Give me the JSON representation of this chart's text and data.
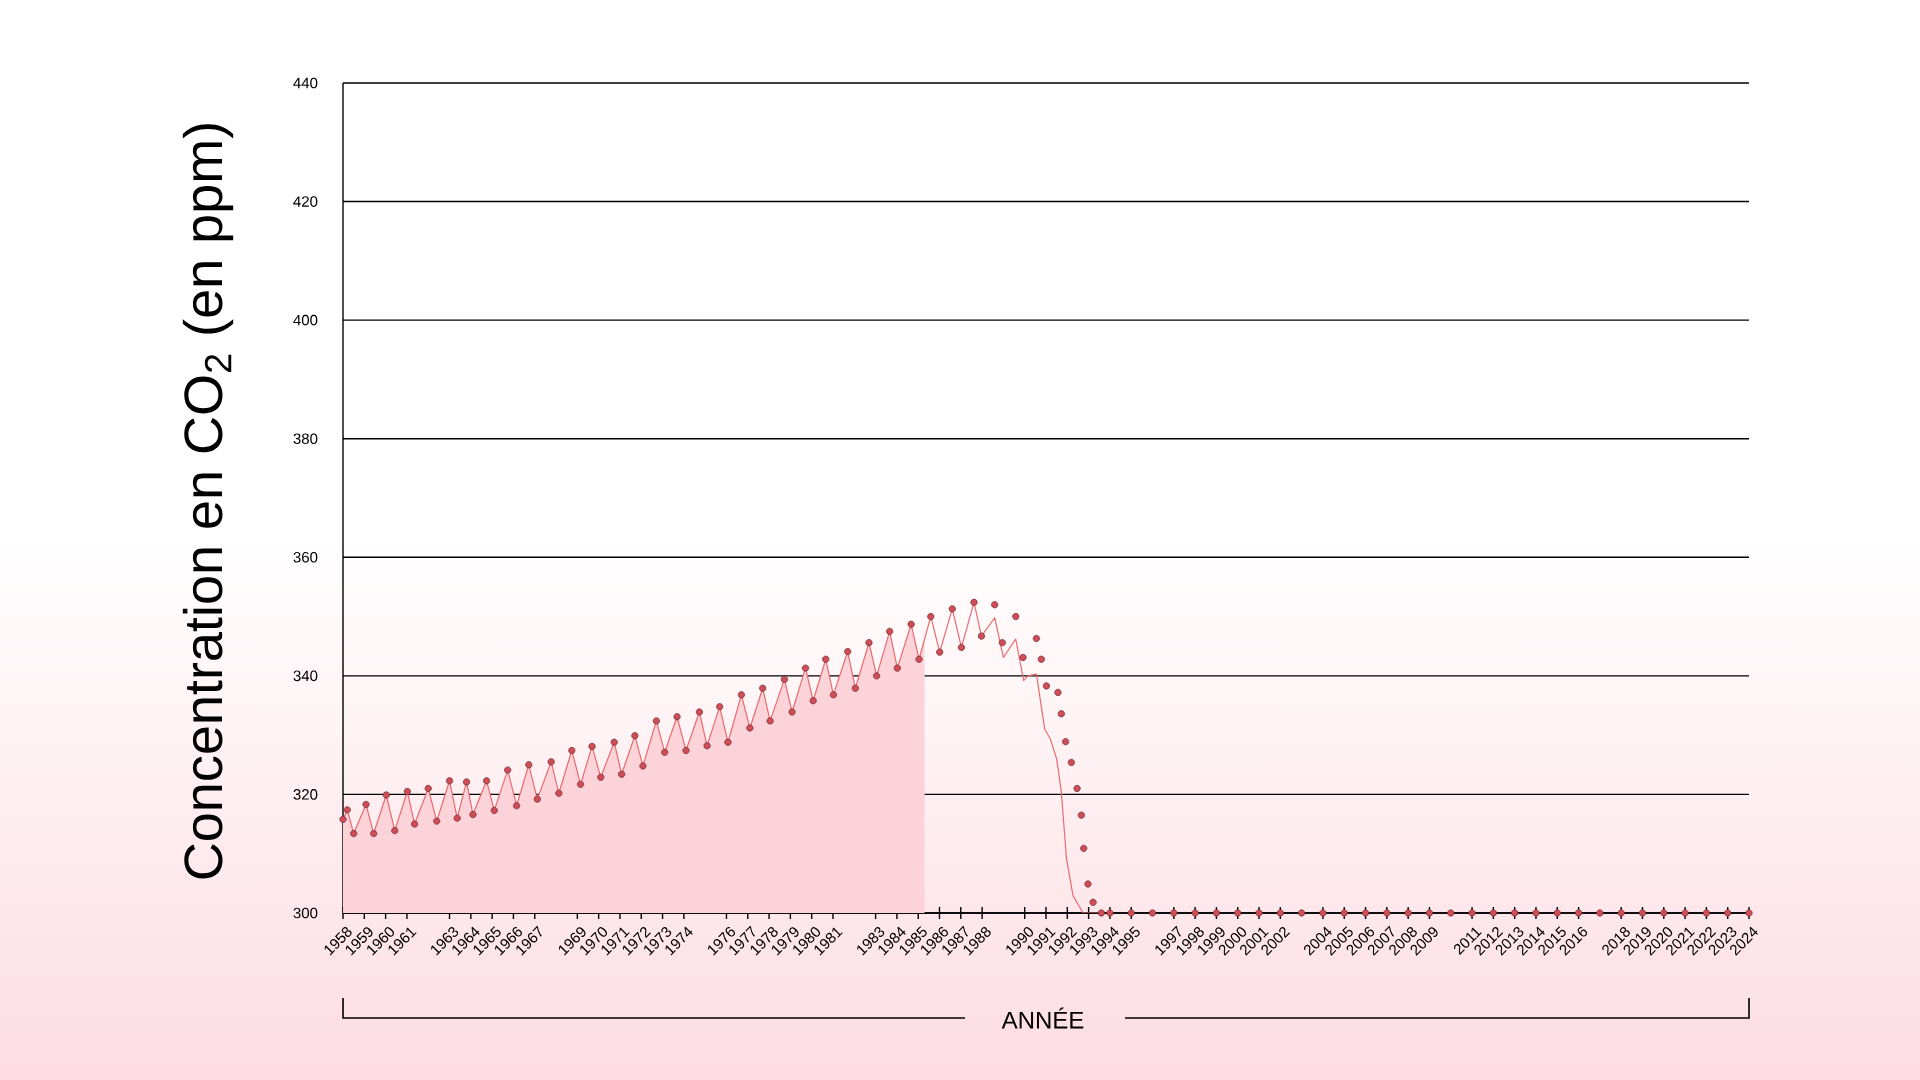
{
  "chart_data": {
    "type": "line",
    "ylabel": "Concentration en CO$_{2}$ (en ppm)",
    "xlabel": "ANNÉE",
    "xlim": [
      1958,
      2024
    ],
    "ylim": [
      300,
      440
    ],
    "yticks": [
      300,
      320,
      340,
      360,
      380,
      400,
      420,
      440
    ],
    "grid": "y",
    "xticks": [
      1958,
      1959,
      1960,
      1961,
      1963,
      1964,
      1965,
      1966,
      1967,
      1969,
      1970,
      1971,
      1972,
      1973,
      1974,
      1976,
      1977,
      1978,
      1979,
      1980,
      1981,
      1983,
      1984,
      1985,
      1986,
      1987,
      1988,
      1990,
      1991,
      1992,
      1993,
      1994,
      1995,
      1997,
      1998,
      1999,
      2000,
      2001,
      2002,
      2004,
      2005,
      2006,
      2007,
      2008,
      2009,
      2011,
      2012,
      2013,
      2014,
      2015,
      2016,
      2018,
      2019,
      2020,
      2021,
      2022,
      2023,
      2024
    ],
    "series": [
      {
        "type": "area",
        "color": "#fdd3da",
        "x": [
          1958.0,
          1958.2,
          1958.5,
          1959.08,
          1959.44,
          1960.03,
          1960.43,
          1961.02,
          1961.36,
          1962.0,
          1962.4,
          1963.0,
          1963.36,
          1963.8,
          1964.1,
          1964.74,
          1965.1,
          1965.73,
          1966.15,
          1966.72,
          1967.12,
          1967.77,
          1968.13,
          1968.74,
          1969.15,
          1969.69,
          1970.1,
          1970.73,
          1971.08,
          1971.7,
          1972.08,
          1972.71,
          1973.1,
          1973.68,
          1974.1,
          1974.73,
          1975.09,
          1975.68,
          1976.07,
          1976.7,
          1977.1,
          1977.7,
          1978.05,
          1978.72,
          1979.08,
          1979.71,
          1980.07,
          1980.66,
          1981.02,
          1981.69,
          1982.05,
          1982.69,
          1983.05,
          1983.66,
          1984.02,
          1984.67,
          1985.04,
          1985.3
        ],
        "values": [
          315.8,
          317.4,
          313.4,
          318.3,
          313.4,
          319.9,
          313.9,
          320.5,
          315.0,
          321.0,
          315.5,
          322.3,
          316.0,
          322.1,
          316.6,
          322.3,
          317.3,
          324.1,
          318.1,
          325.0,
          319.2,
          325.5,
          320.2,
          327.4,
          321.7,
          328.1,
          322.9,
          328.8,
          323.4,
          329.9,
          324.8,
          332.4,
          327.1,
          333.1,
          327.4,
          333.9,
          328.2,
          334.8,
          328.8,
          336.8,
          331.2,
          337.9,
          332.4,
          339.4,
          333.9,
          341.3,
          335.8,
          342.8,
          336.8,
          344.1,
          337.9,
          345.6,
          340.0,
          347.5,
          341.3,
          348.7,
          342.8,
          346.7
        ]
      },
      {
        "type": "line",
        "color": "#ea6a6e",
        "line_style": "solid",
        "x": [
          1958.0,
          1958.2,
          1958.5,
          1959.08,
          1959.44,
          1960.03,
          1960.43,
          1961.02,
          1961.36,
          1962.0,
          1962.4,
          1963.0,
          1963.36,
          1963.8,
          1964.1,
          1964.74,
          1965.1,
          1965.73,
          1966.15,
          1966.72,
          1967.12,
          1967.77,
          1968.13,
          1968.74,
          1969.15,
          1969.69,
          1970.1,
          1970.73,
          1971.08,
          1971.7,
          1972.08,
          1972.71,
          1973.1,
          1973.68,
          1974.1,
          1974.73,
          1975.09,
          1975.68,
          1976.07,
          1976.7,
          1977.1,
          1977.7,
          1978.05,
          1978.72,
          1979.08,
          1979.71,
          1980.07,
          1980.66,
          1981.02,
          1981.69,
          1982.05,
          1982.69,
          1983.05,
          1983.66,
          1984.02,
          1984.67,
          1985.04,
          1985.59,
          1986.01,
          1986.6,
          1987.03,
          1987.62,
          1987.97,
          1988.59,
          1989.0,
          1989.58,
          1989.95,
          1990.15,
          1990.55,
          1990.94,
          1991.2,
          1991.5,
          1991.72,
          1991.96,
          1992.27,
          1992.74,
          1993.6
        ],
        "values": [
          315.8,
          317.4,
          313.4,
          318.3,
          313.4,
          319.9,
          313.9,
          320.5,
          315.0,
          321.0,
          315.5,
          322.3,
          316.0,
          322.1,
          316.6,
          322.3,
          317.3,
          324.1,
          318.1,
          325.0,
          319.2,
          325.5,
          320.2,
          327.4,
          321.7,
          328.1,
          322.9,
          328.8,
          323.4,
          329.9,
          324.8,
          332.4,
          327.1,
          333.1,
          327.4,
          333.9,
          328.2,
          334.8,
          328.8,
          336.8,
          331.2,
          337.9,
          332.4,
          339.4,
          333.9,
          341.3,
          335.8,
          342.8,
          336.8,
          344.1,
          337.9,
          345.6,
          340.0,
          347.5,
          341.3,
          348.7,
          342.8,
          350.0,
          344.0,
          351.3,
          344.8,
          352.4,
          346.7,
          349.8,
          343.1,
          346.2,
          339.2,
          340.0,
          340.3,
          331.0,
          329.4,
          326.0,
          320.4,
          309.2,
          302.9,
          300,
          300
        ]
      },
      {
        "type": "scatter",
        "color": "#cf4d57",
        "marker": "circle",
        "x": [
          1958.0,
          1958.2,
          1958.5,
          1959.08,
          1959.44,
          1960.03,
          1960.43,
          1961.02,
          1961.36,
          1962.0,
          1962.4,
          1963.0,
          1963.36,
          1963.8,
          1964.1,
          1964.74,
          1965.1,
          1965.73,
          1966.15,
          1966.72,
          1967.12,
          1967.77,
          1968.13,
          1968.74,
          1969.15,
          1969.69,
          1970.1,
          1970.73,
          1971.08,
          1971.7,
          1972.08,
          1972.71,
          1973.1,
          1973.68,
          1974.1,
          1974.73,
          1975.09,
          1975.68,
          1976.07,
          1976.7,
          1977.1,
          1977.7,
          1978.05,
          1978.72,
          1979.08,
          1979.71,
          1980.07,
          1980.66,
          1981.02,
          1981.69,
          1982.05,
          1982.69,
          1983.05,
          1983.66,
          1984.02,
          1984.67,
          1985.04,
          1985.59,
          1986.01,
          1986.6,
          1987.03,
          1987.62,
          1987.97,
          1988.59,
          1988.95,
          1989.58,
          1989.92,
          1990.55,
          1990.78,
          1991.02,
          1991.56,
          1991.72,
          1991.92,
          1992.19,
          1992.46,
          1992.66,
          1992.77,
          1992.97,
          1993.21,
          1993.6,
          1994,
          1995,
          1996,
          1997,
          1998,
          1999,
          2000,
          2001,
          2002,
          2003,
          2004,
          2005,
          2006,
          2007,
          2008,
          2009,
          2010,
          2011,
          2012,
          2013,
          2014,
          2015,
          2016,
          2017,
          2018,
          2019,
          2020,
          2021,
          2022,
          2023,
          2024
        ],
        "values": [
          315.8,
          317.4,
          313.4,
          318.3,
          313.4,
          319.9,
          313.9,
          320.5,
          315.0,
          321.0,
          315.5,
          322.3,
          316.0,
          322.1,
          316.6,
          322.3,
          317.3,
          324.1,
          318.1,
          325.0,
          319.2,
          325.5,
          320.2,
          327.4,
          321.7,
          328.1,
          322.9,
          328.8,
          323.4,
          329.9,
          324.8,
          332.4,
          327.1,
          333.1,
          327.4,
          333.9,
          328.2,
          334.8,
          328.8,
          336.8,
          331.2,
          337.9,
          332.4,
          339.4,
          333.9,
          341.3,
          335.8,
          342.8,
          336.8,
          344.1,
          337.9,
          345.6,
          340.0,
          347.5,
          341.3,
          348.7,
          342.8,
          350.0,
          344.0,
          351.3,
          344.8,
          352.4,
          346.7,
          352.0,
          345.6,
          350.0,
          343.1,
          346.3,
          342.8,
          338.3,
          337.2,
          333.6,
          328.9,
          325.4,
          321.0,
          316.5,
          310.9,
          304.9,
          301.8,
          300,
          300,
          300,
          300,
          300,
          300,
          300,
          300,
          300,
          300,
          300,
          300,
          300,
          300,
          300,
          300,
          300,
          300,
          300,
          300,
          300,
          300,
          300,
          300,
          300,
          300,
          300,
          300,
          300,
          300,
          300,
          300
        ]
      }
    ]
  }
}
